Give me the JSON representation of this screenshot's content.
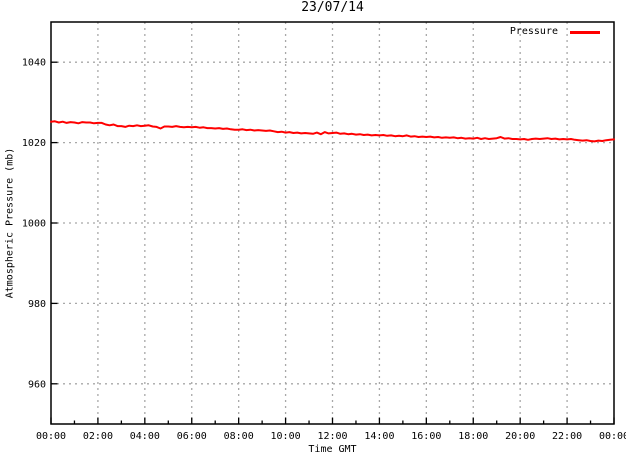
{
  "title": "23/07/14",
  "legend": {
    "label": "Pressure",
    "color": "#ff0000"
  },
  "axes": {
    "y_label": "Atmospheric Pressure (mb)",
    "x_label": "Time GMT"
  },
  "colors": {
    "background": "#ffffff",
    "text": "#000000",
    "border": "#000000",
    "grid": "#a8a8a8",
    "line": "#ff0000"
  },
  "chart_data": {
    "type": "line",
    "title": "23/07/14",
    "xlabel": "Time GMT",
    "ylabel": "Atmospheric Pressure (mb)",
    "xlim_hours": [
      0,
      24
    ],
    "ylim": [
      950,
      1050
    ],
    "grid": true,
    "legend_position": "top-right-inside",
    "x_tick_hours": [
      0,
      2,
      4,
      6,
      8,
      10,
      12,
      14,
      16,
      18,
      20,
      22,
      24
    ],
    "x_tick_labels": [
      "00:00",
      "02:00",
      "04:00",
      "06:00",
      "08:00",
      "10:00",
      "12:00",
      "14:00",
      "16:00",
      "18:00",
      "20:00",
      "22:00",
      "00:00"
    ],
    "x_minor_step_hours": 1,
    "y_ticks": [
      960,
      980,
      1000,
      1020,
      1040
    ],
    "series": [
      {
        "name": "Pressure",
        "color": "#ff0000",
        "x_start_hour": 0,
        "x_step_minutes": 10,
        "values": [
          1025.2,
          1025.3,
          1025.0,
          1025.2,
          1024.9,
          1025.1,
          1025.0,
          1024.8,
          1025.1,
          1025.0,
          1025.0,
          1024.8,
          1024.9,
          1024.9,
          1024.5,
          1024.3,
          1024.5,
          1024.1,
          1024.1,
          1023.9,
          1024.2,
          1024.1,
          1024.3,
          1024.1,
          1024.2,
          1024.3,
          1024.0,
          1023.9,
          1023.5,
          1024.0,
          1024.0,
          1023.9,
          1024.1,
          1023.9,
          1023.8,
          1023.9,
          1023.8,
          1023.9,
          1023.7,
          1023.8,
          1023.6,
          1023.6,
          1023.5,
          1023.6,
          1023.4,
          1023.5,
          1023.3,
          1023.2,
          1023.2,
          1023.3,
          1023.1,
          1023.2,
          1023.0,
          1023.1,
          1023.0,
          1022.9,
          1023.0,
          1022.8,
          1022.6,
          1022.7,
          1022.5,
          1022.6,
          1022.4,
          1022.5,
          1022.3,
          1022.4,
          1022.3,
          1022.2,
          1022.5,
          1022.1,
          1022.6,
          1022.3,
          1022.4,
          1022.5,
          1022.2,
          1022.3,
          1022.1,
          1022.2,
          1022.0,
          1022.1,
          1021.9,
          1022.0,
          1021.8,
          1021.9,
          1021.8,
          1021.9,
          1021.7,
          1021.8,
          1021.6,
          1021.7,
          1021.6,
          1021.8,
          1021.5,
          1021.6,
          1021.4,
          1021.5,
          1021.4,
          1021.5,
          1021.3,
          1021.4,
          1021.2,
          1021.3,
          1021.2,
          1021.3,
          1021.1,
          1021.2,
          1021.0,
          1021.1,
          1021.0,
          1021.2,
          1020.9,
          1021.1,
          1020.9,
          1021.0,
          1021.1,
          1021.4,
          1021.0,
          1021.1,
          1020.9,
          1020.9,
          1020.8,
          1020.9,
          1020.7,
          1020.9,
          1021.0,
          1020.9,
          1021.0,
          1021.1,
          1020.9,
          1021.0,
          1020.8,
          1020.9,
          1020.8,
          1020.9,
          1020.7,
          1020.6,
          1020.5,
          1020.6,
          1020.4,
          1020.3,
          1020.5,
          1020.4,
          1020.6,
          1020.7,
          1020.8
        ]
      }
    ]
  }
}
